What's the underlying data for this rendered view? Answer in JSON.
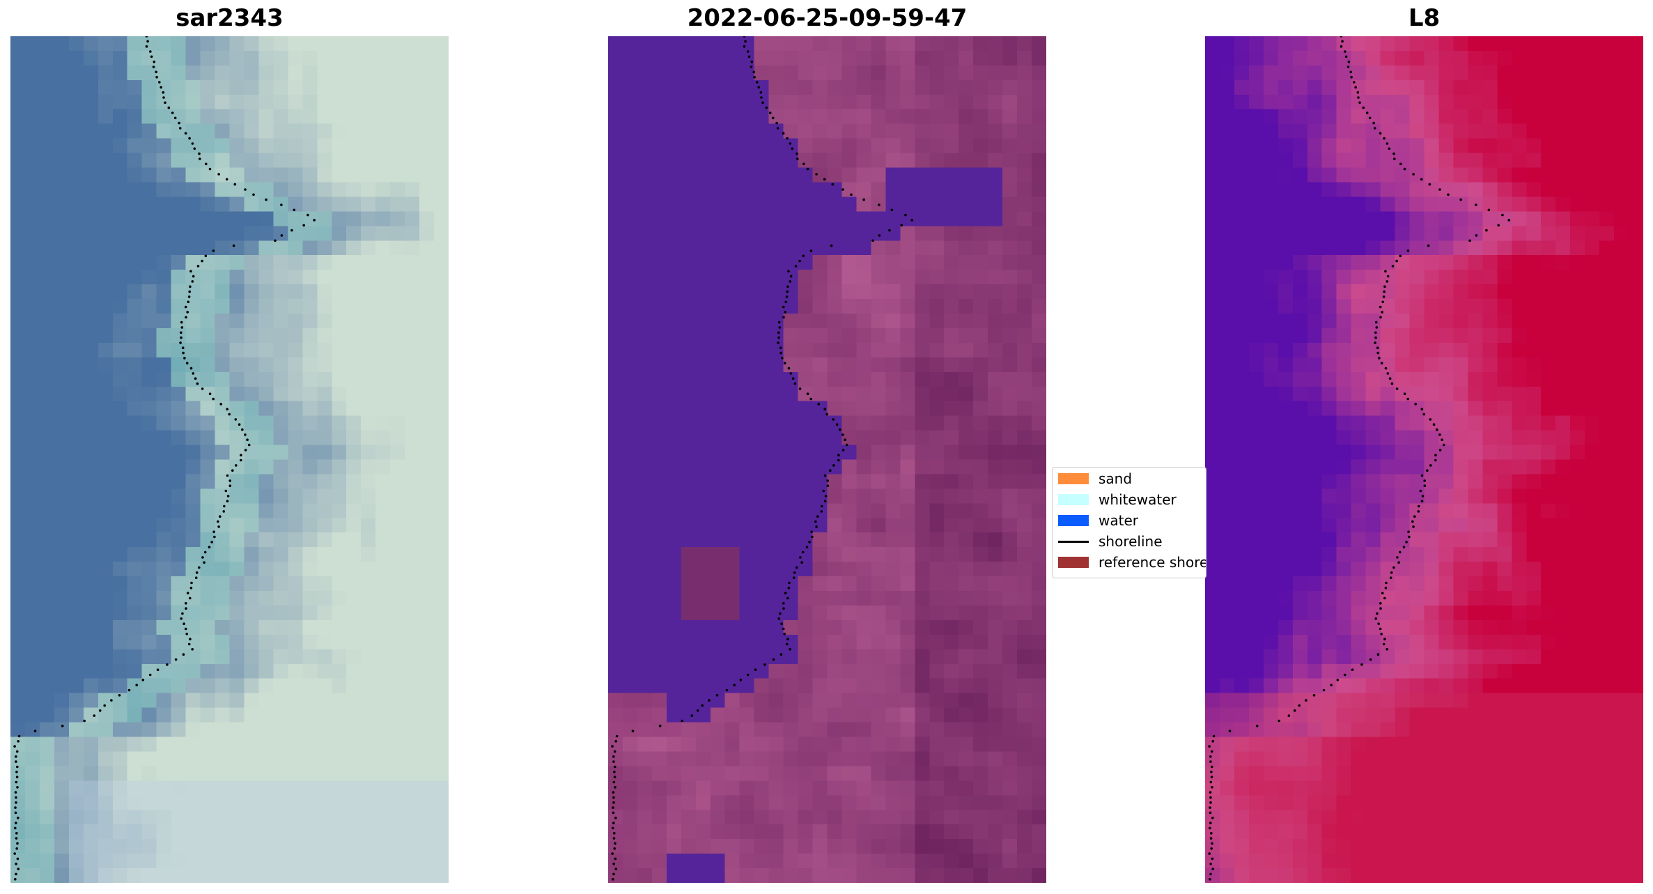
{
  "panels": [
    {
      "title": "sar2343",
      "style": "rgb"
    },
    {
      "title": "2022-06-25-09-59-47",
      "style": "classified"
    },
    {
      "title": "L8",
      "style": "index"
    }
  ],
  "legend": {
    "items": [
      {
        "label": "sand",
        "color": "#ff8c3a",
        "kind": "patch"
      },
      {
        "label": "whitewater",
        "color": "#c6ffff",
        "kind": "patch"
      },
      {
        "label": "water",
        "color": "#0a5cff",
        "kind": "patch"
      },
      {
        "label": "shoreline",
        "color": "#000000",
        "kind": "line"
      },
      {
        "label": "reference shoreline",
        "color": "#a03232",
        "kind": "patch"
      }
    ]
  },
  "colors": {
    "water_class": "#55249a",
    "land_tint": "#8e3a78",
    "index_high": "#c4003c",
    "index_low": "#5a0aa8"
  }
}
